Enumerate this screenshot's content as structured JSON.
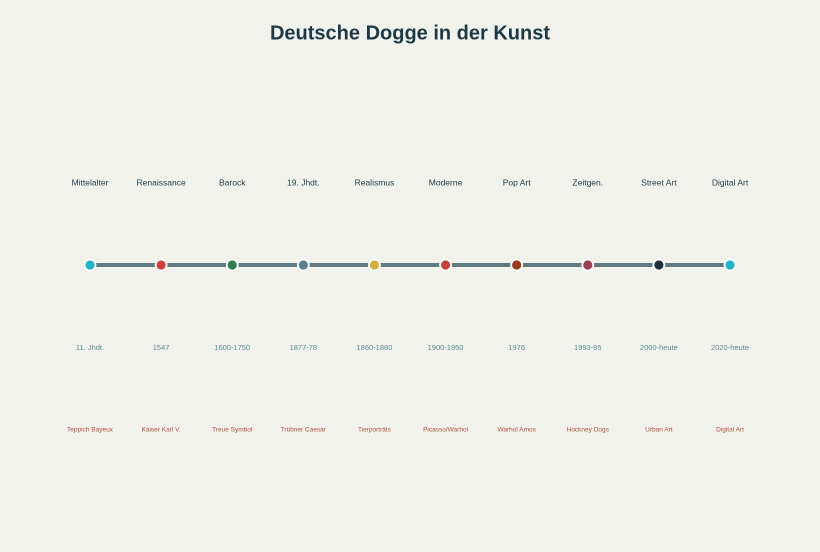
{
  "title": "Deutsche Dogge in der Kunst",
  "events": [
    {
      "label": "Mittelalter",
      "date": "11. Jhdt.",
      "work": "Teppich Bayeux",
      "color": "#1fb5c9"
    },
    {
      "label": "Renaissance",
      "date": "1547",
      "work": "Kaiser Karl V.",
      "color": "#d04038"
    },
    {
      "label": "Barock",
      "date": "1600-1750",
      "work": "Treue Symbol",
      "color": "#2e7d4f"
    },
    {
      "label": "19. Jhdt.",
      "date": "1877-78",
      "work": "Trübner Caesar",
      "color": "#5a7f8c"
    },
    {
      "label": "Realismus",
      "date": "1860-1880",
      "work": "Tierporträts",
      "color": "#d4b03a"
    },
    {
      "label": "Moderne",
      "date": "1900-1950",
      "work": "Picasso/Warhol",
      "color": "#c8403a"
    },
    {
      "label": "Pop Art",
      "date": "1976",
      "work": "Warhol Amos",
      "color": "#9a3c1c"
    },
    {
      "label": "Zeitgen.",
      "date": "1993-95",
      "work": "Hockney Dogs",
      "color": "#9a4050"
    },
    {
      "label": "Street Art",
      "date": "2000-heute",
      "work": "Urban Art",
      "color": "#1d3238"
    },
    {
      "label": "Digital Art",
      "date": "2020-heute",
      "work": "Digital Art",
      "color": "#1fb5c9"
    }
  ]
}
